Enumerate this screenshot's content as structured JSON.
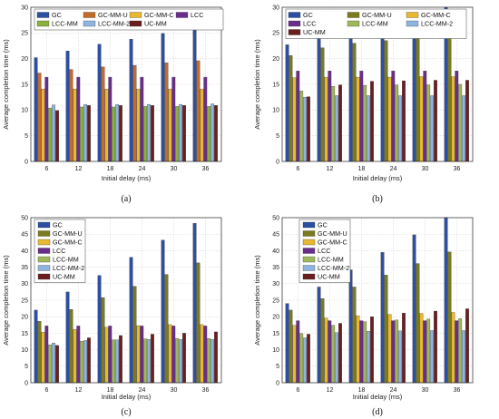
{
  "chart_data": [
    {
      "type": "bar",
      "caption": "(a)",
      "xlabel": "Initial delay (ms)",
      "ylabel": "Average completion time (ms)",
      "categories": [
        "6",
        "12",
        "18",
        "24",
        "30",
        "36"
      ],
      "ylim": [
        0,
        30
      ],
      "yticks": [
        0,
        5,
        10,
        15,
        20,
        25,
        30
      ],
      "grid": true,
      "legend": "top, 4 columns",
      "series": [
        {
          "name": "GC",
          "color": "#2c4fa3",
          "values": [
            20.2,
            21.5,
            22.8,
            23.8,
            24.9,
            26.2
          ]
        },
        {
          "name": "GC-MM-U",
          "color": "#c46a2a",
          "values": [
            17.2,
            17.9,
            18.4,
            18.7,
            19.2,
            19.6
          ]
        },
        {
          "name": "GC-MM-C",
          "color": "#e8b830",
          "values": [
            14.1,
            14.1,
            14.1,
            14.1,
            14.1,
            14.1
          ]
        },
        {
          "name": "LCC",
          "color": "#6b2d8c",
          "values": [
            16.4,
            16.4,
            16.4,
            16.4,
            16.4,
            16.4
          ]
        },
        {
          "name": "LCC-MM",
          "color": "#8cb03c",
          "values": [
            10.4,
            10.6,
            10.6,
            10.7,
            10.7,
            10.7
          ]
        },
        {
          "name": "LCC-MM-2",
          "color": "#8fb4e0",
          "values": [
            11.0,
            11.1,
            11.1,
            11.1,
            11.1,
            11.2
          ]
        },
        {
          "name": "UC-MM",
          "color": "#6b1e1e",
          "values": [
            9.9,
            10.9,
            10.9,
            10.9,
            10.9,
            10.9
          ]
        }
      ]
    },
    {
      "type": "bar",
      "caption": "(b)",
      "xlabel": "Initial delay (ms)",
      "ylabel": "Average completion time (ms)",
      "categories": [
        "6",
        "12",
        "18",
        "24",
        "30",
        "36"
      ],
      "ylim": [
        0,
        30
      ],
      "yticks": [
        0,
        5,
        10,
        15,
        20,
        25,
        30
      ],
      "grid": true,
      "legend": "top, 3 columns",
      "series": [
        {
          "name": "GC",
          "color": "#2c4fa3",
          "values": [
            22.7,
            25.0,
            26.5,
            27.6,
            29.0,
            30.0
          ]
        },
        {
          "name": "GC-MM-U",
          "color": "#7a7a1e",
          "values": [
            20.6,
            22.1,
            23.0,
            23.5,
            23.9,
            24.2
          ]
        },
        {
          "name": "GC-MM-C",
          "color": "#e8b830",
          "values": [
            16.3,
            16.4,
            16.4,
            16.4,
            16.5,
            16.5
          ]
        },
        {
          "name": "LCC",
          "color": "#6b2d8c",
          "values": [
            17.6,
            17.6,
            17.6,
            17.6,
            17.6,
            17.6
          ]
        },
        {
          "name": "LCC-MM",
          "color": "#9fb85a",
          "values": [
            13.7,
            14.6,
            14.8,
            14.9,
            14.9,
            15.0
          ]
        },
        {
          "name": "LCC-MM-2",
          "color": "#8fb4e0",
          "values": [
            12.5,
            12.8,
            12.8,
            12.8,
            12.8,
            12.8
          ]
        },
        {
          "name": "UC-MM",
          "color": "#6b1e1e",
          "values": [
            12.6,
            14.9,
            15.6,
            15.7,
            15.8,
            15.8
          ]
        }
      ]
    },
    {
      "type": "bar",
      "caption": "(c)",
      "xlabel": "Initial delay (ms)",
      "ylabel": "Average completion time (ms)",
      "categories": [
        "6",
        "12",
        "18",
        "24",
        "30",
        "36"
      ],
      "ylim": [
        0,
        50
      ],
      "yticks": [
        0,
        5,
        10,
        15,
        20,
        25,
        30,
        35,
        40,
        45,
        50
      ],
      "grid": true,
      "legend": "top-left, 1 column",
      "series": [
        {
          "name": "GC",
          "color": "#2c4fa3",
          "values": [
            22.0,
            27.5,
            32.5,
            38.0,
            43.2,
            48.3
          ]
        },
        {
          "name": "GC-MM-U",
          "color": "#7a7a1e",
          "values": [
            18.6,
            22.2,
            25.8,
            29.2,
            32.8,
            36.3
          ]
        },
        {
          "name": "GC-MM-C",
          "color": "#e8b830",
          "values": [
            15.3,
            16.1,
            16.8,
            17.3,
            17.6,
            17.6
          ]
        },
        {
          "name": "LCC",
          "color": "#6b2d8c",
          "values": [
            17.2,
            17.2,
            17.2,
            17.2,
            17.2,
            17.2
          ]
        },
        {
          "name": "LCC-MM",
          "color": "#9fb85a",
          "values": [
            11.5,
            12.6,
            13.0,
            13.3,
            13.4,
            13.4
          ]
        },
        {
          "name": "LCC-MM-2",
          "color": "#8fb4e0",
          "values": [
            12.0,
            12.8,
            13.0,
            13.1,
            13.1,
            13.1
          ]
        },
        {
          "name": "UC-MM",
          "color": "#6b1e1e",
          "values": [
            11.3,
            13.6,
            14.3,
            14.7,
            15.0,
            15.4
          ]
        }
      ]
    },
    {
      "type": "bar",
      "caption": "(d)",
      "xlabel": "Initial delay (ms)",
      "ylabel": "Average completion time (ms)",
      "categories": [
        "6",
        "12",
        "18",
        "24",
        "30",
        "36"
      ],
      "ylim": [
        0,
        50
      ],
      "yticks": [
        0,
        5,
        10,
        15,
        20,
        25,
        30,
        35,
        40,
        45,
        50
      ],
      "grid": true,
      "legend": "top, 1 column",
      "series": [
        {
          "name": "GC",
          "color": "#2c4fa3",
          "values": [
            24.0,
            29.0,
            34.2,
            39.5,
            44.8,
            50.0
          ]
        },
        {
          "name": "GC-MM-U",
          "color": "#7a7a1e",
          "values": [
            22.0,
            25.5,
            29.0,
            32.6,
            36.1,
            39.6
          ]
        },
        {
          "name": "GC-MM-C",
          "color": "#e8b830",
          "values": [
            17.4,
            19.6,
            20.3,
            20.7,
            21.0,
            21.3
          ]
        },
        {
          "name": "LCC",
          "color": "#6b2d8c",
          "values": [
            18.8,
            18.8,
            18.8,
            18.8,
            18.8,
            18.8
          ]
        },
        {
          "name": "LCC-MM",
          "color": "#9fb85a",
          "values": [
            14.9,
            17.4,
            18.5,
            19.0,
            19.3,
            19.4
          ]
        },
        {
          "name": "LCC-MM-2",
          "color": "#8fb4e0",
          "values": [
            13.6,
            15.2,
            15.6,
            15.7,
            15.8,
            15.8
          ]
        },
        {
          "name": "UC-MM",
          "color": "#6b1e1e",
          "values": [
            14.7,
            18.0,
            20.0,
            21.1,
            21.7,
            22.4
          ]
        }
      ]
    }
  ]
}
